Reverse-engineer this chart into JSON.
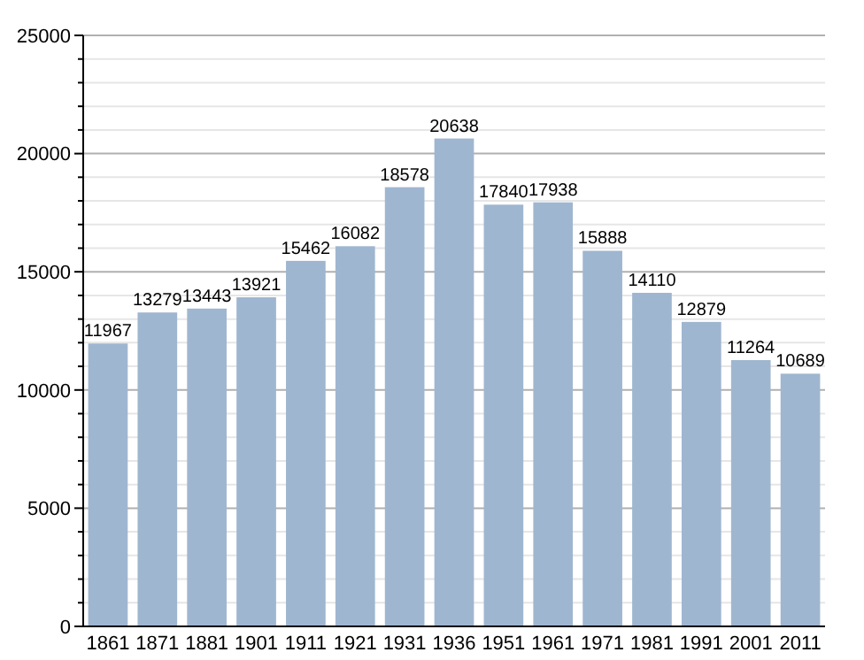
{
  "chart_data": {
    "type": "bar",
    "categories": [
      "1861",
      "1871",
      "1881",
      "1901",
      "1911",
      "1921",
      "1931",
      "1936",
      "1951",
      "1961",
      "1971",
      "1981",
      "1991",
      "2001",
      "2011"
    ],
    "values": [
      11967,
      13279,
      13443,
      13921,
      15462,
      16082,
      18578,
      20638,
      17840,
      17938,
      15888,
      14110,
      12879,
      11264,
      10689
    ],
    "color": "#9fb6d0",
    "ylim": [
      0,
      25000
    ],
    "yticks": [
      0,
      {
        "value": 1000,
        "label": null
      },
      {
        "value": 2000,
        "label": null
      },
      {
        "value": 3000,
        "label": null
      },
      {
        "value": 4000,
        "label": null
      },
      5000,
      {
        "value": 6000,
        "label": null
      },
      {
        "value": 7000,
        "label": null
      },
      {
        "value": 8000,
        "label": null
      },
      {
        "value": 9000,
        "label": null
      },
      10000,
      {
        "value": 11000,
        "label": null
      },
      {
        "value": 12000,
        "label": null
      },
      {
        "value": 13000,
        "label": null
      },
      {
        "value": 14000,
        "label": null
      },
      15000,
      {
        "value": 16000,
        "label": null
      },
      {
        "value": 17000,
        "label": null
      },
      {
        "value": 18000,
        "label": null
      },
      {
        "value": 19000,
        "label": null
      },
      20000,
      {
        "value": 21000,
        "label": null
      },
      {
        "value": 22000,
        "label": null
      },
      {
        "value": 23000,
        "label": null
      },
      {
        "value": 24000,
        "label": null
      },
      25000
    ],
    "grid": true,
    "data_labels": true
  }
}
